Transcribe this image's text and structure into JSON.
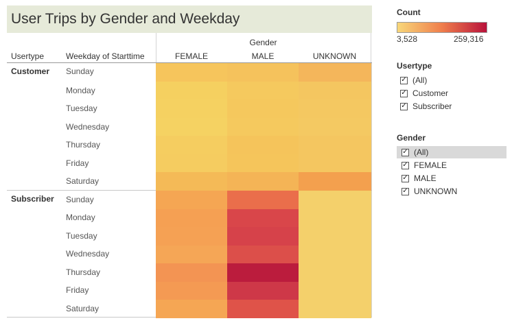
{
  "title": "User Trips by Gender and Weekday",
  "headers": {
    "gender": "Gender",
    "usertype": "Usertype",
    "weekday": "Weekday of Starttime",
    "columns": [
      "FEMALE",
      "MALE",
      "UNKNOWN"
    ]
  },
  "groups": [
    {
      "label": "Customer",
      "days": [
        "Sunday",
        "Monday",
        "Tuesday",
        "Wednesday",
        "Thursday",
        "Friday",
        "Saturday"
      ]
    },
    {
      "label": "Subscriber",
      "days": [
        "Sunday",
        "Monday",
        "Tuesday",
        "Wednesday",
        "Thursday",
        "Friday",
        "Saturday"
      ]
    }
  ],
  "heatmap_colors": {
    "customer": [
      [
        "#f6c55c",
        "#f5c25c",
        "#f4b65b"
      ],
      [
        "#f5d060",
        "#f5c95e",
        "#f4c660"
      ],
      [
        "#f5d161",
        "#f5c85d",
        "#f4c861"
      ],
      [
        "#f5d262",
        "#f5c95e",
        "#f4c962"
      ],
      [
        "#f5cd60",
        "#f5c45b",
        "#f4c660"
      ],
      [
        "#f5cc60",
        "#f5c55b",
        "#f4c660"
      ],
      [
        "#f4ba57",
        "#f4b456",
        "#f3a04e"
      ]
    ],
    "subscriber": [
      [
        "#f5a653",
        "#ea6e4b",
        "#f4d06b"
      ],
      [
        "#f5a053",
        "#d9464a",
        "#f4d06b"
      ],
      [
        "#f5a154",
        "#d6424a",
        "#f4d06b"
      ],
      [
        "#f5a656",
        "#dc4f4a",
        "#f4d06b"
      ],
      [
        "#f39453",
        "#bb1c3d",
        "#f4d06b"
      ],
      [
        "#f49a53",
        "#ce3848",
        "#f4d06b"
      ],
      [
        "#f5a654",
        "#df5349",
        "#f4d06b"
      ]
    ]
  },
  "legend": {
    "title": "Count",
    "min_label": "3,528",
    "max_label": "259,316",
    "color_low": "#f8d77a",
    "color_mid": "#ef7e4c",
    "color_high": "#b8123b"
  },
  "usertype_filter": {
    "title": "Usertype",
    "items": [
      "(All)",
      "Customer",
      "Subscriber"
    ]
  },
  "gender_filter": {
    "title": "Gender",
    "items": [
      "(All)",
      "FEMALE",
      "MALE",
      "UNKNOWN"
    ],
    "selected": "(All)"
  },
  "checkmark": "✓"
}
